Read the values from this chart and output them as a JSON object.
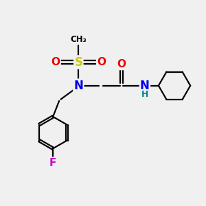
{
  "bg_color": "#f0f0f0",
  "atom_colors": {
    "C": "#000000",
    "N": "#0000ee",
    "O": "#ee0000",
    "S": "#cccc00",
    "F": "#cc00cc",
    "H": "#008888"
  },
  "figsize": [
    3.0,
    3.0
  ],
  "dpi": 100
}
